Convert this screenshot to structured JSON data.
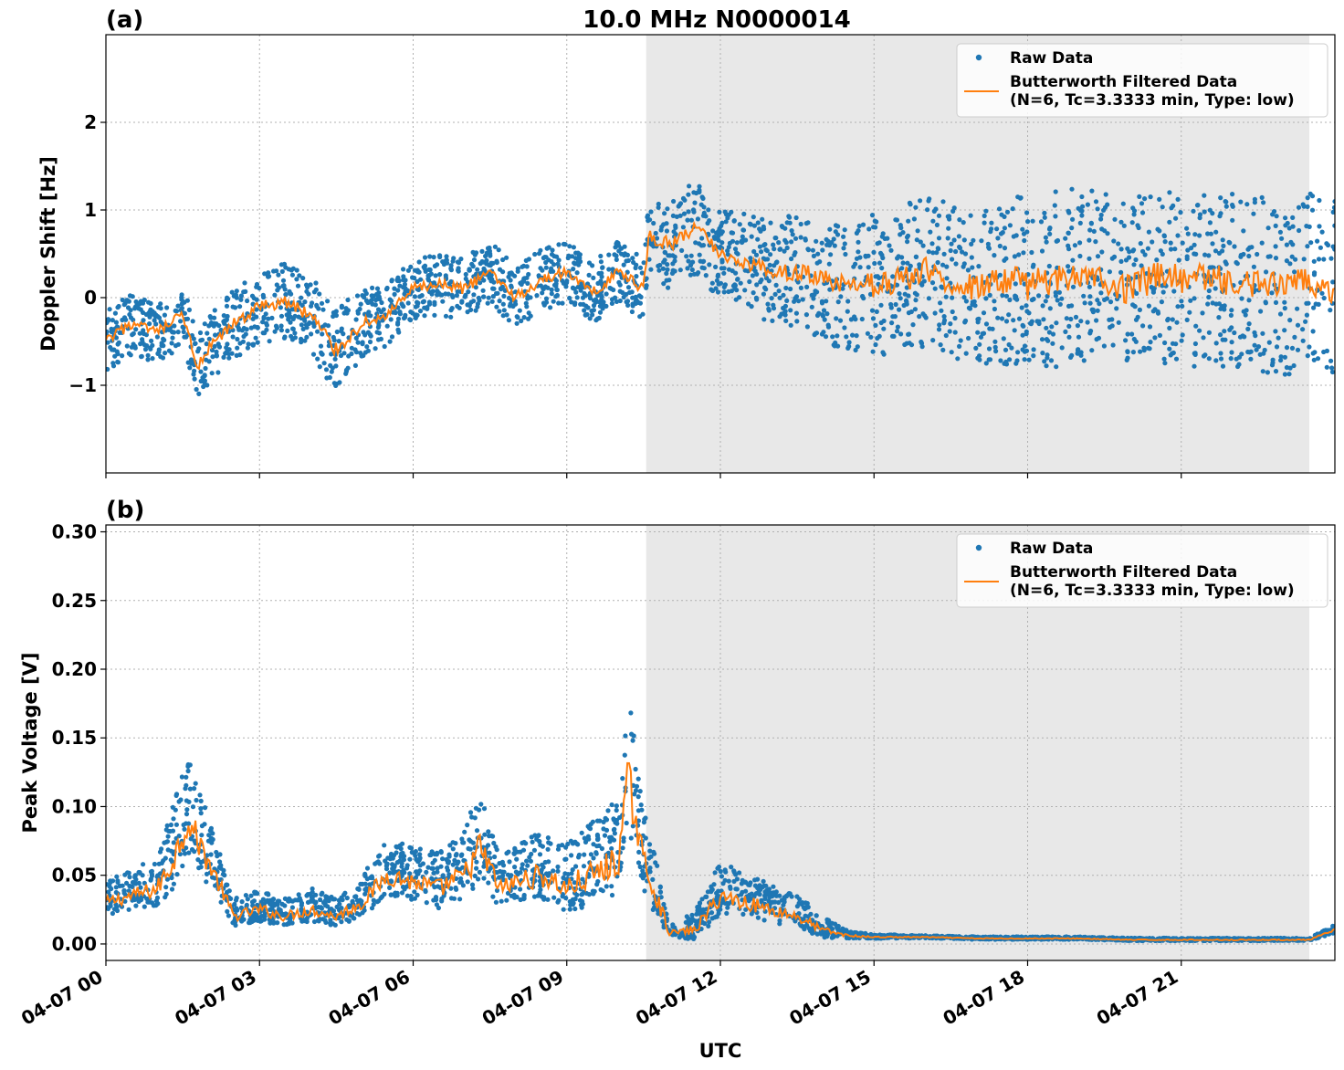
{
  "figure": {
    "title": "10.0 MHz N0000014",
    "xlabel": "UTC",
    "colors": {
      "raw": "#1f77b4",
      "filtered": "#ff7f0e",
      "shade": "#e8e8e8"
    }
  },
  "chart_data": [
    {
      "type": "scatter",
      "panel_label": "(a)",
      "xlabel": "",
      "ylabel": "Doppler Shift [Hz]",
      "xlim": [
        0,
        24
      ],
      "ylim": [
        -2,
        3
      ],
      "x_ticks": [
        0,
        3,
        6,
        9,
        12,
        15,
        18,
        21
      ],
      "x_tick_labels": [
        "04-07 00",
        "04-07 03",
        "04-07 06",
        "04-07 09",
        "04-07 12",
        "04-07 15",
        "04-07 18",
        "04-07 21"
      ],
      "y_ticks": [
        -1,
        0,
        1,
        2
      ],
      "y_tick_labels": [
        "−1",
        "0",
        "1",
        "2"
      ],
      "grid": true,
      "shaded_region_hours": [
        10.55,
        23.5
      ],
      "legend_position": "top-right",
      "series": [
        {
          "name": "Raw Data",
          "style": "points",
          "x": [
            0,
            0.5,
            1,
            1.5,
            1.8,
            2,
            2.5,
            3,
            3.5,
            4,
            4.5,
            5,
            5.5,
            6,
            6.5,
            7,
            7.5,
            8,
            8.5,
            9,
            9.5,
            10,
            10.5,
            10.6,
            11,
            11.5,
            12,
            12.5,
            13,
            13.5,
            14,
            14.5,
            15,
            15.5,
            16,
            16.5,
            17,
            17.5,
            18,
            18.5,
            19,
            19.5,
            20,
            20.5,
            21,
            21.5,
            22,
            22.5,
            23,
            23.5,
            24
          ],
          "y": [
            -0.5,
            -0.3,
            -0.4,
            -0.2,
            -0.8,
            -0.6,
            -0.3,
            -0.1,
            -0.05,
            -0.2,
            -0.6,
            -0.3,
            -0.2,
            0.1,
            0.15,
            0.1,
            0.3,
            0.0,
            0.2,
            0.3,
            0.05,
            0.3,
            0.1,
            0.7,
            0.6,
            0.8,
            0.5,
            0.4,
            0.3,
            0.3,
            0.2,
            0.1,
            0.15,
            0.2,
            0.3,
            0.2,
            0.1,
            0.2,
            0.15,
            0.2,
            0.3,
            0.2,
            0.1,
            0.25,
            0.2,
            0.2,
            0.2,
            0.15,
            0.1,
            0.2,
            0.1
          ],
          "spread": [
            0.35,
            0.35,
            0.35,
            0.35,
            0.4,
            0.4,
            0.4,
            0.4,
            0.45,
            0.45,
            0.5,
            0.4,
            0.35,
            0.35,
            0.35,
            0.35,
            0.35,
            0.35,
            0.35,
            0.35,
            0.35,
            0.35,
            0.35,
            0.45,
            0.5,
            0.55,
            0.5,
            0.55,
            0.6,
            0.65,
            0.7,
            0.75,
            0.8,
            0.85,
            0.9,
            0.9,
            0.9,
            0.95,
            1.0,
            1.0,
            1.0,
            1.0,
            1.0,
            1.0,
            1.0,
            1.0,
            1.0,
            1.0,
            1.0,
            1.0,
            1.0
          ]
        },
        {
          "name": "Butterworth Filtered Data\n(N=6, Tc=3.3333 min, Type: low)",
          "style": "line",
          "x": [
            0,
            0.5,
            1,
            1.5,
            1.8,
            2,
            2.5,
            3,
            3.5,
            4,
            4.5,
            5,
            5.5,
            6,
            6.5,
            7,
            7.5,
            8,
            8.5,
            9,
            9.5,
            10,
            10.5,
            10.6,
            11,
            11.5,
            12,
            12.5,
            13,
            13.5,
            14,
            14.5,
            15,
            15.5,
            16,
            16.5,
            17,
            17.5,
            18,
            18.5,
            19,
            19.5,
            20,
            20.5,
            21,
            21.5,
            22,
            22.5,
            23,
            23.5,
            24
          ],
          "y": [
            -0.5,
            -0.3,
            -0.4,
            -0.2,
            -0.8,
            -0.6,
            -0.3,
            -0.1,
            -0.05,
            -0.2,
            -0.6,
            -0.3,
            -0.2,
            0.1,
            0.15,
            0.1,
            0.3,
            0.0,
            0.2,
            0.3,
            0.05,
            0.3,
            0.1,
            0.7,
            0.6,
            0.8,
            0.5,
            0.4,
            0.3,
            0.3,
            0.2,
            0.1,
            0.15,
            0.2,
            0.3,
            0.2,
            0.1,
            0.2,
            0.15,
            0.2,
            0.3,
            0.2,
            0.1,
            0.25,
            0.2,
            0.2,
            0.2,
            0.15,
            0.1,
            0.2,
            0.1
          ]
        }
      ]
    },
    {
      "type": "scatter",
      "panel_label": "(b)",
      "xlabel": "UTC",
      "ylabel": "Peak Voltage [V]",
      "xlim": [
        0,
        24
      ],
      "ylim": [
        -0.012,
        0.305
      ],
      "x_ticks": [
        0,
        3,
        6,
        9,
        12,
        15,
        18,
        21
      ],
      "x_tick_labels": [
        "04-07 00",
        "04-07 03",
        "04-07 06",
        "04-07 09",
        "04-07 12",
        "04-07 15",
        "04-07 18",
        "04-07 21"
      ],
      "y_ticks": [
        0.0,
        0.05,
        0.1,
        0.15,
        0.2,
        0.25,
        0.3
      ],
      "y_tick_labels": [
        "0.00",
        "0.05",
        "0.10",
        "0.15",
        "0.20",
        "0.25",
        "0.30"
      ],
      "grid": true,
      "shaded_region_hours": [
        10.55,
        23.5
      ],
      "legend_position": "top-right",
      "series": [
        {
          "name": "Raw Data",
          "style": "points",
          "x": [
            0,
            0.5,
            1,
            1.3,
            1.6,
            2,
            2.5,
            3,
            3.5,
            4,
            4.5,
            5,
            5.5,
            6,
            6.5,
            7,
            7.3,
            7.7,
            8,
            8.5,
            9,
            9.5,
            10,
            10.2,
            10.5,
            10.8,
            11,
            11.5,
            12,
            12.5,
            13,
            13.5,
            14,
            14.5,
            15,
            16,
            17,
            18,
            19,
            20,
            21,
            22,
            23,
            23.5,
            24
          ],
          "y": [
            0.03,
            0.035,
            0.04,
            0.06,
            0.09,
            0.06,
            0.02,
            0.025,
            0.02,
            0.025,
            0.02,
            0.03,
            0.05,
            0.045,
            0.04,
            0.05,
            0.07,
            0.04,
            0.045,
            0.05,
            0.04,
            0.05,
            0.06,
            0.12,
            0.06,
            0.03,
            0.008,
            0.01,
            0.035,
            0.03,
            0.025,
            0.02,
            0.01,
            0.006,
            0.005,
            0.005,
            0.004,
            0.004,
            0.004,
            0.003,
            0.003,
            0.003,
            0.003,
            0.003,
            0.01
          ],
          "spread": [
            0.025,
            0.03,
            0.035,
            0.06,
            0.07,
            0.05,
            0.02,
            0.025,
            0.02,
            0.025,
            0.02,
            0.03,
            0.04,
            0.04,
            0.04,
            0.05,
            0.07,
            0.04,
            0.04,
            0.05,
            0.05,
            0.06,
            0.07,
            0.1,
            0.06,
            0.04,
            0.01,
            0.02,
            0.04,
            0.03,
            0.03,
            0.025,
            0.015,
            0.005,
            0.003,
            0.002,
            0.002,
            0.002,
            0.002,
            0.002,
            0.002,
            0.002,
            0.002,
            0.002,
            0.006
          ]
        },
        {
          "name": "Butterworth Filtered Data\n(N=6, Tc=3.3333 min, Type: low)",
          "style": "line",
          "x": [
            0,
            0.5,
            1,
            1.3,
            1.6,
            2,
            2.5,
            3,
            3.5,
            4,
            4.5,
            5,
            5.5,
            6,
            6.5,
            7,
            7.3,
            7.7,
            8,
            8.5,
            9,
            9.5,
            10,
            10.2,
            10.5,
            10.8,
            11,
            11.5,
            12,
            12.5,
            13,
            13.5,
            14,
            14.5,
            15,
            16,
            17,
            18,
            19,
            20,
            21,
            22,
            23,
            23.5,
            24
          ],
          "y": [
            0.03,
            0.035,
            0.04,
            0.06,
            0.09,
            0.06,
            0.02,
            0.025,
            0.02,
            0.025,
            0.02,
            0.03,
            0.05,
            0.045,
            0.04,
            0.05,
            0.07,
            0.04,
            0.045,
            0.05,
            0.04,
            0.05,
            0.06,
            0.12,
            0.06,
            0.03,
            0.008,
            0.01,
            0.035,
            0.03,
            0.025,
            0.02,
            0.01,
            0.006,
            0.005,
            0.005,
            0.004,
            0.004,
            0.004,
            0.003,
            0.003,
            0.003,
            0.003,
            0.003,
            0.01
          ]
        }
      ]
    }
  ]
}
